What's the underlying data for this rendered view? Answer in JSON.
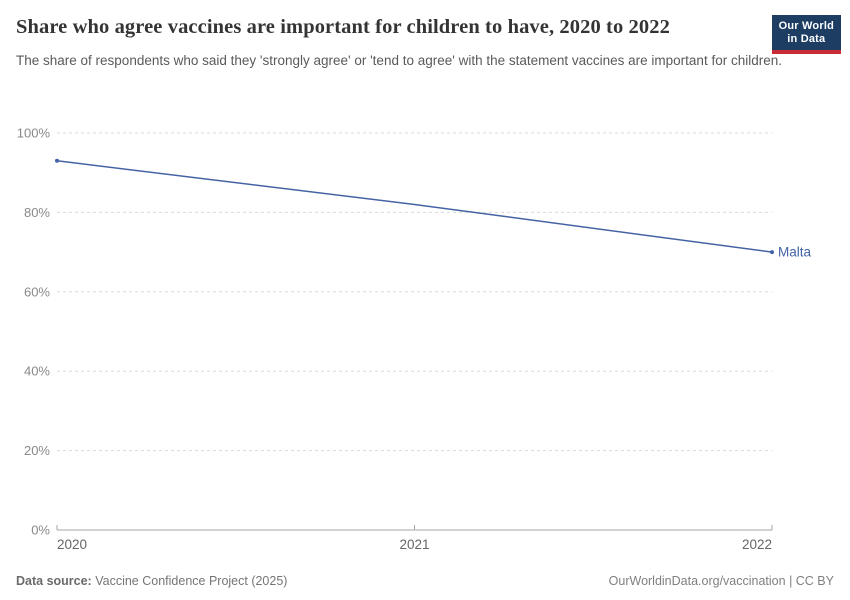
{
  "header": {
    "title": "Share who agree vaccines are important for children to have, 2020 to 2022",
    "subtitle": "The share of respondents who said they 'strongly agree' or 'tend to agree' with the statement vaccines are important for children.",
    "logo": {
      "line1": "Our World",
      "line2": "in Data"
    }
  },
  "footer": {
    "source_label": "Data source:",
    "source_value": "Vaccine Confidence Project (2025)",
    "rights": "OurWorldinData.org/vaccination | CC BY"
  },
  "colors": {
    "logo_background": "#1d3d63",
    "logo_underline": "#c82d37",
    "gridline": "#dadada",
    "axis": "#a6a6a6",
    "ytick_label": "#898989",
    "xtick_label": "#666666",
    "title_text": "#343434",
    "subtitle_text": "#5a5a5a"
  },
  "chart_data": {
    "type": "line",
    "title": "Share who agree vaccines are important for children to have, 2020 to 2022",
    "xlabel": "",
    "ylabel": "",
    "x": [
      2020,
      2021,
      2022
    ],
    "series": [
      {
        "name": "Malta",
        "values": [
          93,
          82,
          70
        ],
        "color": "#4463a5"
      }
    ],
    "xlim": [
      2020,
      2022
    ],
    "ylim": [
      0,
      100
    ],
    "xticks": [
      2020,
      2021,
      2022
    ],
    "yticks": [
      0,
      20,
      40,
      60,
      80,
      100
    ],
    "ytick_suffix": "%",
    "grid": "horizontal-dashed",
    "legend_position": "end-of-line-label"
  }
}
